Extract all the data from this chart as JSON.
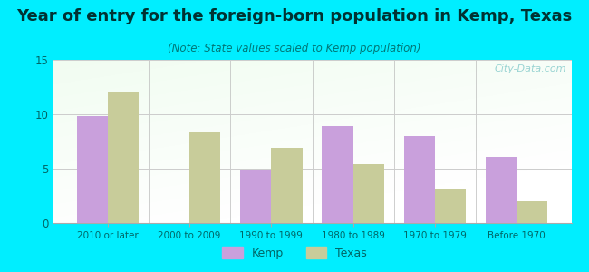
{
  "title": "Year of entry for the foreign-born population in Kemp, Texas",
  "subtitle": "(Note: State values scaled to Kemp population)",
  "categories": [
    "2010 or later",
    "2000 to 2009",
    "1990 to 1999",
    "1980 to 1989",
    "1970 to 1979",
    "Before 1970"
  ],
  "kemp_values": [
    9.8,
    0,
    4.9,
    8.9,
    8.0,
    6.1
  ],
  "texas_values": [
    12.1,
    8.3,
    6.9,
    5.4,
    3.1,
    2.0
  ],
  "kemp_color": "#c9a0dc",
  "texas_color": "#c8cc9a",
  "ylim": [
    0,
    15
  ],
  "yticks": [
    0,
    5,
    10,
    15
  ],
  "outer_background": "#00eeff",
  "title_fontsize": 13,
  "subtitle_fontsize": 8.5,
  "watermark": "City-Data.com",
  "legend_kemp": "Kemp",
  "legend_texas": "Texas",
  "bar_width": 0.38,
  "grid_color": "#cccccc",
  "title_color": "#003333",
  "subtitle_color": "#007777",
  "tick_color": "#006666",
  "watermark_color": "#88cccc"
}
